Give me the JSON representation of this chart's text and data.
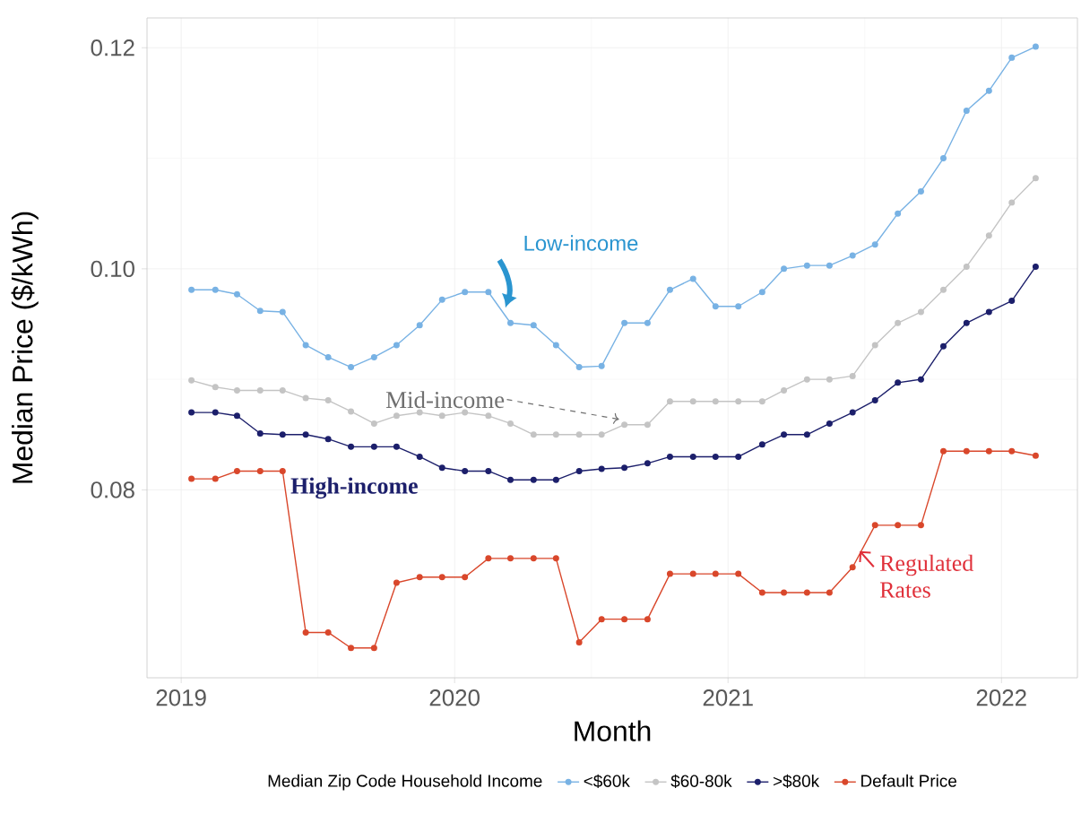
{
  "chart_data": {
    "type": "line",
    "xlabel": "Month",
    "ylabel": "Median Price ($/kWh)",
    "legend_title": "Median Zip Code Household Income",
    "x": [
      "2019-01-15",
      "2019-02-15",
      "2019-03-15",
      "2019-04-15",
      "2019-05-15",
      "2019-06-15",
      "2019-07-15",
      "2019-08-15",
      "2019-09-15",
      "2019-10-15",
      "2019-11-15",
      "2019-12-15",
      "2020-01-15",
      "2020-02-15",
      "2020-03-15",
      "2020-04-15",
      "2020-05-15",
      "2020-06-15",
      "2020-07-15",
      "2020-08-15",
      "2020-09-15",
      "2020-10-15",
      "2020-11-15",
      "2020-12-15",
      "2021-01-15",
      "2021-02-15",
      "2021-03-15",
      "2021-04-15",
      "2021-05-15",
      "2021-06-15",
      "2021-07-15",
      "2021-08-15",
      "2021-09-15",
      "2021-10-15",
      "2021-11-15",
      "2021-12-15",
      "2022-01-15",
      "2022-02-15"
    ],
    "series": [
      {
        "name": "<$60k",
        "color": "#78b2e4",
        "values": [
          0.0981,
          0.0981,
          0.0977,
          0.0962,
          0.0961,
          0.0931,
          0.092,
          0.0911,
          0.092,
          0.0931,
          0.0949,
          0.0972,
          0.0979,
          0.0979,
          0.0951,
          0.0949,
          0.0931,
          0.0911,
          0.0912,
          0.0951,
          0.0951,
          0.0981,
          0.0991,
          0.0966,
          0.0966,
          0.0979,
          0.1,
          0.1003,
          0.1003,
          0.1012,
          0.1022,
          0.105,
          0.107,
          0.11,
          0.1143,
          0.1161,
          0.1191,
          0.1201
        ]
      },
      {
        "name": "$60-80k",
        "color": "#c4c4c4",
        "values": [
          0.0899,
          0.0893,
          0.089,
          0.089,
          0.089,
          0.0883,
          0.0881,
          0.0871,
          0.086,
          0.0867,
          0.087,
          0.0867,
          0.087,
          0.0867,
          0.086,
          0.085,
          0.085,
          0.085,
          0.085,
          0.0859,
          0.0859,
          0.088,
          0.088,
          0.088,
          0.088,
          0.088,
          0.089,
          0.09,
          0.09,
          0.0903,
          0.0931,
          0.0951,
          0.0961,
          0.0981,
          0.1002,
          0.103,
          0.106,
          0.1082
        ]
      },
      {
        "name": ">$80k",
        "color": "#1c1f6b",
        "values": [
          0.087,
          0.087,
          0.0867,
          0.0851,
          0.085,
          0.085,
          0.0846,
          0.0839,
          0.0839,
          0.0839,
          0.083,
          0.082,
          0.0817,
          0.0817,
          0.0809,
          0.0809,
          0.0809,
          0.0817,
          0.0819,
          0.082,
          0.0824,
          0.083,
          0.083,
          0.083,
          0.083,
          0.0841,
          0.085,
          0.085,
          0.086,
          0.087,
          0.0881,
          0.0897,
          0.09,
          0.093,
          0.0951,
          0.0961,
          0.0971,
          0.1002
        ]
      },
      {
        "name": "Default Price",
        "color": "#d9472b",
        "values": [
          0.081,
          0.081,
          0.0817,
          0.0817,
          0.0817,
          0.0671,
          0.0671,
          0.0657,
          0.0657,
          0.0716,
          0.0721,
          0.0721,
          0.0721,
          0.0738,
          0.0738,
          0.0738,
          0.0738,
          0.0662,
          0.0683,
          0.0683,
          0.0683,
          0.0724,
          0.0724,
          0.0724,
          0.0724,
          0.0707,
          0.0707,
          0.0707,
          0.0707,
          0.073,
          0.0768,
          0.0768,
          0.0768,
          0.0835,
          0.0835,
          0.0835,
          0.0835,
          0.0831
        ]
      }
    ],
    "xlim": [
      "2018-11-16",
      "2022-04-11"
    ],
    "xticks": [
      "2019",
      "2020",
      "2021",
      "2022"
    ],
    "ylim": [
      0.063,
      0.1227
    ],
    "yticks": [
      0.08,
      {
        "value": 0.1,
        "label": "0.10"
      },
      0.12
    ],
    "annotations": [
      {
        "text": "Low-income",
        "x": "2020-03-01",
        "y": 0.0965
      },
      {
        "text": "Mid-income",
        "x": "2020-08-15",
        "y": 0.0859
      },
      {
        "text": "High-income",
        "x": "2019-09-15",
        "y": 0.0839
      },
      {
        "text": "Regulated Rates",
        "x": "2021-06-15",
        "y": 0.073
      }
    ],
    "grid": true,
    "legend": "bottom",
    "marker": "circle",
    "line_style": "solid"
  }
}
